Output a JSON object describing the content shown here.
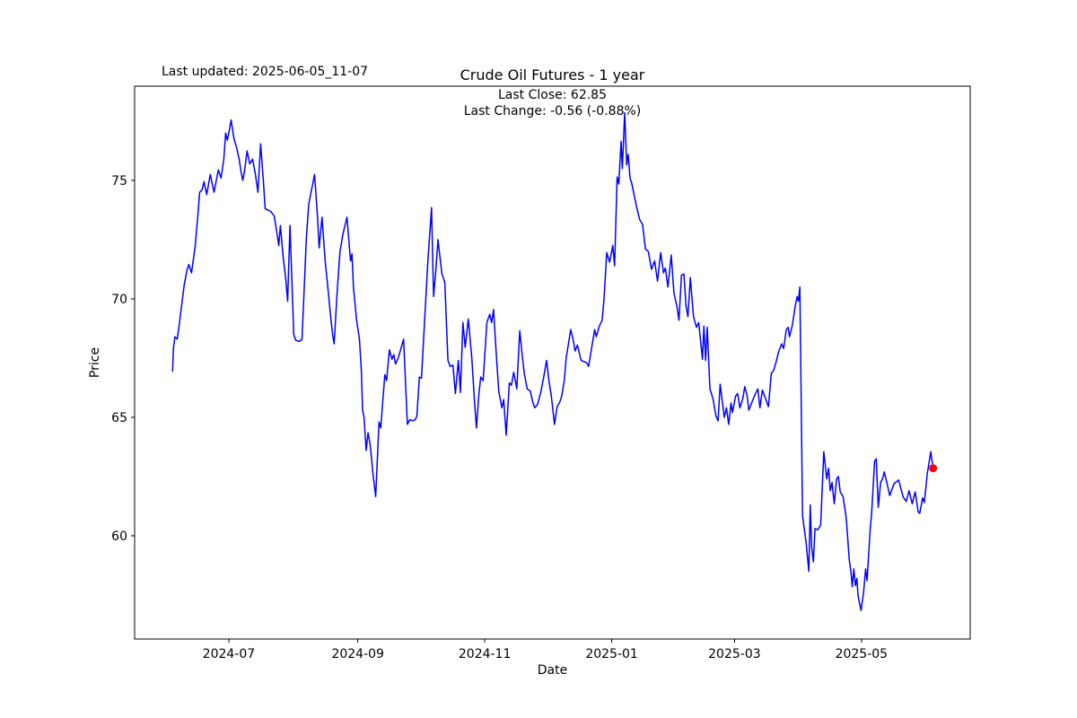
{
  "figure": {
    "last_updated": "Last updated: 2025-06-05_11-07",
    "title": "Crude Oil Futures - 1 year",
    "annotation_line1": "Last Close: 62.85",
    "annotation_line2": "Last Change: -0.56 (-0.88%)",
    "x_label": "Date",
    "y_label": "Price"
  },
  "chart_data": {
    "type": "line",
    "title": "Crude Oil Futures - 1 year",
    "xlabel": "Date",
    "ylabel": "Price",
    "grid": false,
    "legend": null,
    "line_color": "#0000ff",
    "line_width": 1.5,
    "marker_color": "#ff0000",
    "marker_radius": 4.5,
    "axis_color": "#000000",
    "background_color": "#ffffff",
    "last_close": 62.85,
    "last_change": -0.56,
    "last_change_pct": "-0.88%",
    "start_date": "2024-06-04",
    "end_date": "2025-06-04",
    "x_domain_days": [
      -18.25,
      383.25
    ],
    "y_domain": [
      55.64,
      78.98
    ],
    "x_ticks": [
      {
        "label": "2024-07",
        "day": 27
      },
      {
        "label": "2024-09",
        "day": 89
      },
      {
        "label": "2024-11",
        "day": 150
      },
      {
        "label": "2025-01",
        "day": 211
      },
      {
        "label": "2025-03",
        "day": 270
      },
      {
        "label": "2025-05",
        "day": 331
      }
    ],
    "y_ticks": [
      {
        "label": "60",
        "value": 60
      },
      {
        "label": "65",
        "value": 65
      },
      {
        "label": "70",
        "value": 70
      },
      {
        "label": "75",
        "value": 75
      }
    ],
    "end_marker": {
      "day": 365.4,
      "price": 62.85
    },
    "points": [
      [
        0,
        66.95
      ],
      [
        0.4,
        67.9
      ],
      [
        1.1,
        68.4
      ],
      [
        2.2,
        68.3
      ],
      [
        3,
        68.8
      ],
      [
        4.3,
        69.7
      ],
      [
        5.6,
        70.6
      ],
      [
        6.9,
        71.2
      ],
      [
        7.8,
        71.45
      ],
      [
        9.1,
        71.1
      ],
      [
        10.8,
        72.2
      ],
      [
        12.1,
        73.5
      ],
      [
        13,
        74.5
      ],
      [
        14.2,
        74.6
      ],
      [
        15.1,
        74.95
      ],
      [
        16.4,
        74.4
      ],
      [
        18.1,
        75.25
      ],
      [
        19.9,
        74.5
      ],
      [
        21.2,
        75.1
      ],
      [
        22,
        75.45
      ],
      [
        23.3,
        75.1
      ],
      [
        24.6,
        75.9
      ],
      [
        25.5,
        77
      ],
      [
        26.3,
        76.7
      ],
      [
        27.2,
        77.1
      ],
      [
        28.1,
        77.55
      ],
      [
        29.4,
        76.8
      ],
      [
        30.7,
        76.4
      ],
      [
        32,
        75.9
      ],
      [
        32.8,
        75.4
      ],
      [
        33.7,
        75
      ],
      [
        34.5,
        75.35
      ],
      [
        35.8,
        76.25
      ],
      [
        37.1,
        75.7
      ],
      [
        38.4,
        75.9
      ],
      [
        39.7,
        75.3
      ],
      [
        41,
        74.5
      ],
      [
        42.3,
        76.55
      ],
      [
        43.6,
        75
      ],
      [
        44.5,
        73.8
      ],
      [
        45.8,
        73.75
      ],
      [
        47.1,
        73.7
      ],
      [
        48.8,
        73.5
      ],
      [
        50.1,
        72.8
      ],
      [
        51,
        72.25
      ],
      [
        51.8,
        73.1
      ],
      [
        53.1,
        71.8
      ],
      [
        54.4,
        70.8
      ],
      [
        55.3,
        69.9
      ],
      [
        56.4,
        73.1
      ],
      [
        58.2,
        68.5
      ],
      [
        59.2,
        68.25
      ],
      [
        60.9,
        68.2
      ],
      [
        62.2,
        68.3
      ],
      [
        63.2,
        70.4
      ],
      [
        64.3,
        72.6
      ],
      [
        65.4,
        74
      ],
      [
        68.2,
        75.25
      ],
      [
        69.7,
        73.4
      ],
      [
        70.4,
        72.15
      ],
      [
        71.8,
        73.45
      ],
      [
        73.3,
        71.6
      ],
      [
        74.7,
        70.4
      ],
      [
        76.1,
        69.1
      ],
      [
        76.9,
        68.5
      ],
      [
        77.6,
        68.1
      ],
      [
        79,
        70.2
      ],
      [
        80.4,
        72
      ],
      [
        81.9,
        72.75
      ],
      [
        83.8,
        73.45
      ],
      [
        85.5,
        71.6
      ],
      [
        86.2,
        71.9
      ],
      [
        86.9,
        70.5
      ],
      [
        88.4,
        69.1
      ],
      [
        89.8,
        68.3
      ],
      [
        90.7,
        67
      ],
      [
        91.3,
        65.3
      ],
      [
        92,
        65
      ],
      [
        93,
        63.6
      ],
      [
        93.9,
        64.35
      ],
      [
        95,
        63.8
      ],
      [
        96.3,
        62.6
      ],
      [
        97.6,
        61.65
      ],
      [
        99.2,
        64.8
      ],
      [
        100,
        64.55
      ],
      [
        102,
        66.8
      ],
      [
        102.8,
        66.55
      ],
      [
        104.2,
        67.85
      ],
      [
        105.4,
        67.45
      ],
      [
        106.3,
        67.65
      ],
      [
        107.1,
        67.25
      ],
      [
        108.4,
        67.5
      ],
      [
        109.7,
        67.9
      ],
      [
        111,
        68.3
      ],
      [
        112.8,
        64.7
      ],
      [
        114,
        64.9
      ],
      [
        115.3,
        64.85
      ],
      [
        116.6,
        64.9
      ],
      [
        117.4,
        65.05
      ],
      [
        118.6,
        66.7
      ],
      [
        119.6,
        66.65
      ],
      [
        120.9,
        68.8
      ],
      [
        122.6,
        71.5
      ],
      [
        124.4,
        73.85
      ],
      [
        125.4,
        70.1
      ],
      [
        126.5,
        71.2
      ],
      [
        127.5,
        72.5
      ],
      [
        129.4,
        71.05
      ],
      [
        130.8,
        70.7
      ],
      [
        132.3,
        67.4
      ],
      [
        133.4,
        67.15
      ],
      [
        134.7,
        67.2
      ],
      [
        135.9,
        66
      ],
      [
        137.3,
        67.4
      ],
      [
        138.3,
        66.05
      ],
      [
        139.5,
        69
      ],
      [
        140.6,
        67.95
      ],
      [
        142.1,
        69.15
      ],
      [
        143.8,
        67.45
      ],
      [
        145.1,
        65.6
      ],
      [
        146,
        64.55
      ],
      [
        147.2,
        66
      ],
      [
        148.1,
        66.7
      ],
      [
        149.2,
        66.55
      ],
      [
        151,
        69
      ],
      [
        152.4,
        69.35
      ],
      [
        153.3,
        69
      ],
      [
        154.2,
        69.55
      ],
      [
        155.3,
        68
      ],
      [
        156.7,
        66.1
      ],
      [
        158.2,
        65.4
      ],
      [
        159.1,
        65.75
      ],
      [
        160.3,
        64.25
      ],
      [
        161.8,
        66.45
      ],
      [
        162.8,
        66.35
      ],
      [
        163.9,
        66.9
      ],
      [
        165.4,
        66.2
      ],
      [
        166.8,
        68.65
      ],
      [
        168,
        67.6
      ],
      [
        169,
        66.85
      ],
      [
        170.4,
        66.2
      ],
      [
        171.9,
        66.1
      ],
      [
        173.2,
        65.6
      ],
      [
        174,
        65.4
      ],
      [
        175.4,
        65.55
      ],
      [
        176.9,
        66.05
      ],
      [
        178.3,
        66.7
      ],
      [
        179.7,
        67.4
      ],
      [
        180.9,
        66.5
      ],
      [
        182,
        65.9
      ],
      [
        183.5,
        64.7
      ],
      [
        184.8,
        65.45
      ],
      [
        186.1,
        65.65
      ],
      [
        187,
        65.9
      ],
      [
        188.3,
        66.6
      ],
      [
        189.1,
        67.5
      ],
      [
        190.4,
        68.2
      ],
      [
        191.3,
        68.7
      ],
      [
        192.4,
        68.3
      ],
      [
        193.4,
        67.8
      ],
      [
        194.5,
        68.05
      ],
      [
        195.6,
        67.65
      ],
      [
        196.3,
        67.4
      ],
      [
        197.7,
        67.35
      ],
      [
        199,
        67.3
      ],
      [
        199.9,
        67.15
      ],
      [
        201.3,
        67.9
      ],
      [
        202.8,
        68.7
      ],
      [
        203.6,
        68.4
      ],
      [
        205,
        68.85
      ],
      [
        206.4,
        69.1
      ],
      [
        207.3,
        70
      ],
      [
        208.6,
        71.95
      ],
      [
        210,
        71.55
      ],
      [
        211.5,
        72.25
      ],
      [
        212.4,
        71.4
      ],
      [
        213.6,
        75.15
      ],
      [
        214.4,
        74.85
      ],
      [
        215.5,
        76.65
      ],
      [
        216.1,
        75.5
      ],
      [
        217.2,
        77.85
      ],
      [
        218.2,
        75.65
      ],
      [
        218.9,
        76.1
      ],
      [
        219.8,
        75.1
      ],
      [
        220.6,
        74.9
      ],
      [
        221.5,
        74.5
      ],
      [
        222.9,
        73.9
      ],
      [
        224.4,
        73.35
      ],
      [
        225.8,
        73.15
      ],
      [
        227.2,
        72.1
      ],
      [
        228.6,
        72
      ],
      [
        230.1,
        71.25
      ],
      [
        231.6,
        71.6
      ],
      [
        233,
        70.75
      ],
      [
        234.5,
        71.95
      ],
      [
        235.9,
        71.1
      ],
      [
        236.8,
        71.3
      ],
      [
        238,
        70.5
      ],
      [
        239.6,
        71.85
      ],
      [
        240.9,
        70.25
      ],
      [
        242.4,
        69.65
      ],
      [
        243.3,
        69.1
      ],
      [
        244.5,
        71
      ],
      [
        245.7,
        71.05
      ],
      [
        246.7,
        69.7
      ],
      [
        247.6,
        69.25
      ],
      [
        248.8,
        70.9
      ],
      [
        250.3,
        69.25
      ],
      [
        251.7,
        68.8
      ],
      [
        252.8,
        69
      ],
      [
        254.6,
        67.45
      ],
      [
        255.3,
        68.85
      ],
      [
        256.1,
        67.4
      ],
      [
        256.9,
        68.8
      ],
      [
        258.2,
        66.2
      ],
      [
        259.6,
        65.8
      ],
      [
        261.1,
        65.05
      ],
      [
        262.1,
        64.85
      ],
      [
        263.1,
        66.4
      ],
      [
        265.1,
        65
      ],
      [
        266.1,
        65.4
      ],
      [
        267.2,
        64.7
      ],
      [
        268.3,
        65.6
      ],
      [
        269,
        65.2
      ],
      [
        270.5,
        65.9
      ],
      [
        271.5,
        66
      ],
      [
        272.6,
        65.4
      ],
      [
        274,
        65.8
      ],
      [
        274.9,
        66.3
      ],
      [
        276.1,
        65.9
      ],
      [
        276.9,
        65.3
      ],
      [
        278.2,
        65.6
      ],
      [
        279.8,
        65.95
      ],
      [
        281.2,
        66.2
      ],
      [
        282.2,
        65.4
      ],
      [
        283.4,
        66.15
      ],
      [
        284.9,
        65.8
      ],
      [
        286.3,
        65.45
      ],
      [
        287.7,
        66.85
      ],
      [
        288.9,
        67
      ],
      [
        289.9,
        67.3
      ],
      [
        291.3,
        67.8
      ],
      [
        292.7,
        68.1
      ],
      [
        293.6,
        67.9
      ],
      [
        294.9,
        68.7
      ],
      [
        295.8,
        68.8
      ],
      [
        296.4,
        68.4
      ],
      [
        297.8,
        68.9
      ],
      [
        299.2,
        69.7
      ],
      [
        300.1,
        70.1
      ],
      [
        300.7,
        69.9
      ],
      [
        301.4,
        70.5
      ],
      [
        302.7,
        60.85
      ],
      [
        304.4,
        59.7
      ],
      [
        305.7,
        58.5
      ],
      [
        306.4,
        61.3
      ],
      [
        307.1,
        59.5
      ],
      [
        307.9,
        58.9
      ],
      [
        308.7,
        60.3
      ],
      [
        310,
        60.25
      ],
      [
        311.4,
        60.45
      ],
      [
        312.9,
        63.55
      ],
      [
        314.3,
        62.4
      ],
      [
        315.2,
        62.85
      ],
      [
        316,
        61.9
      ],
      [
        316.9,
        62.25
      ],
      [
        317.9,
        61.35
      ],
      [
        319.1,
        62.4
      ],
      [
        319.9,
        62.5
      ],
      [
        320.8,
        61.85
      ],
      [
        322.2,
        61.65
      ],
      [
        323.7,
        60.75
      ],
      [
        325.1,
        59
      ],
      [
        326,
        58.45
      ],
      [
        326.6,
        57.85
      ],
      [
        327.3,
        58.6
      ],
      [
        328.1,
        57.9
      ],
      [
        328.8,
        58.2
      ],
      [
        329.4,
        57.45
      ],
      [
        330.8,
        56.85
      ],
      [
        332,
        57.6
      ],
      [
        333,
        58.6
      ],
      [
        333.7,
        58.1
      ],
      [
        335.2,
        60.3
      ],
      [
        335.9,
        60.95
      ],
      [
        337.3,
        63.15
      ],
      [
        338.1,
        63.25
      ],
      [
        339.1,
        61.2
      ],
      [
        340.2,
        62.25
      ],
      [
        341.1,
        62.4
      ],
      [
        342,
        62.7
      ],
      [
        343.3,
        62.2
      ],
      [
        344.6,
        61.7
      ],
      [
        345.4,
        61.9
      ],
      [
        346.7,
        62.2
      ],
      [
        348.9,
        62.35
      ],
      [
        351,
        61.65
      ],
      [
        352.5,
        61.45
      ],
      [
        353.9,
        61.9
      ],
      [
        355.4,
        61.35
      ],
      [
        356.8,
        61.85
      ],
      [
        358.3,
        61
      ],
      [
        359,
        60.95
      ],
      [
        360.4,
        61.6
      ],
      [
        361.2,
        61.4
      ],
      [
        362.6,
        62.6
      ],
      [
        364.3,
        63.55
      ],
      [
        365.4,
        62.85
      ]
    ]
  }
}
